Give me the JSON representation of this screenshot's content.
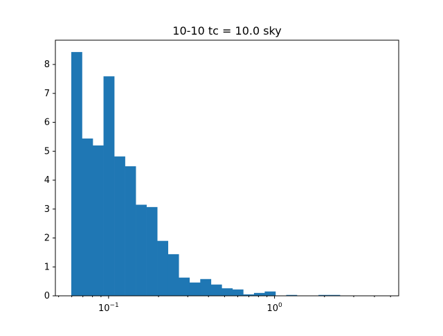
{
  "chart_data": {
    "type": "bar",
    "title": "10-10 tc = 10.0 sky",
    "xlabel": "",
    "ylabel": "",
    "xscale": "log",
    "bin_range": [
      0.0596,
      4.5
    ],
    "values": [
      8.43,
      5.44,
      5.2,
      7.59,
      4.82,
      4.48,
      3.15,
      3.07,
      1.9,
      1.44,
      0.63,
      0.46,
      0.58,
      0.39,
      0.26,
      0.22,
      0.05,
      0.1,
      0.15,
      0,
      0.03,
      0,
      0,
      0.03,
      0.03,
      0,
      0,
      0,
      0
    ],
    "xlim": [
      0.0478,
      5.6
    ],
    "ylim": [
      0,
      8.84
    ],
    "yticks": [
      "0",
      "1",
      "2",
      "3",
      "4",
      "5",
      "6",
      "7",
      "8"
    ],
    "xticks": [
      {
        "value": 0.1,
        "base": "10",
        "exp": "−1"
      },
      {
        "value": 1,
        "base": "10",
        "exp": "0"
      }
    ],
    "grid": false,
    "bar_color": "#1f77b4"
  }
}
